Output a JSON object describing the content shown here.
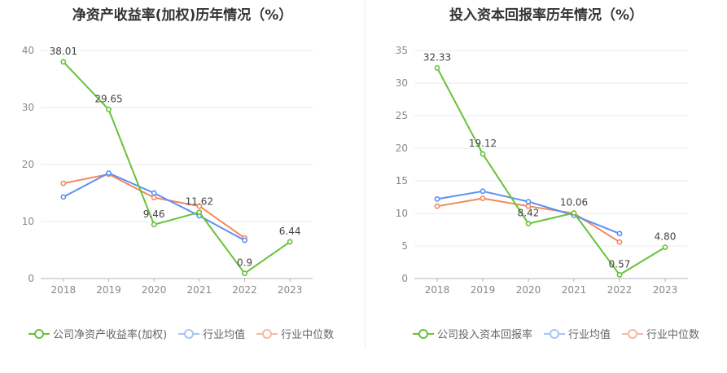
{
  "charts": [
    {
      "title": "净资产收益率(加权)历年情况（%）",
      "legend": [
        "公司净资产收益率(加权)",
        "行业均值",
        "行业中位数"
      ]
    },
    {
      "title": "投入资本回报率历年情况（%）",
      "legend": [
        "公司投入资本回报率",
        "行业均值",
        "行业中位数"
      ]
    }
  ],
  "colors": {
    "company": "#67c23a",
    "avg": "#5b8ff9",
    "median": "#f4885b",
    "avg_legend": "#a9c3f7",
    "median_legend": "#f5b8a3"
  },
  "chart_data": [
    {
      "type": "line",
      "title": "净资产收益率(加权)历年情况（%）",
      "categories": [
        "2018",
        "2019",
        "2020",
        "2021",
        "2022",
        "2023"
      ],
      "ylim": [
        0,
        40
      ],
      "yticks": [
        0,
        10,
        20,
        30,
        40
      ],
      "series": [
        {
          "name": "公司净资产收益率(加权)",
          "values": [
            38.01,
            29.65,
            9.46,
            11.62,
            0.9,
            6.44
          ],
          "labels": [
            "38.01",
            "29.65",
            "9.46",
            "11.62",
            "0.9",
            "6.44"
          ]
        },
        {
          "name": "行业均值",
          "values": [
            14.3,
            18.5,
            15.0,
            11.0,
            6.7,
            null
          ]
        },
        {
          "name": "行业中位数",
          "values": [
            16.7,
            18.3,
            14.2,
            12.7,
            7.1,
            null
          ]
        }
      ]
    },
    {
      "type": "line",
      "title": "投入资本回报率历年情况（%）",
      "categories": [
        "2018",
        "2019",
        "2020",
        "2021",
        "2022",
        "2023"
      ],
      "ylim": [
        0,
        35
      ],
      "yticks": [
        0,
        5,
        10,
        15,
        20,
        25,
        30,
        35
      ],
      "series": [
        {
          "name": "公司投入资本回报率",
          "values": [
            32.33,
            19.12,
            8.42,
            10.06,
            0.57,
            4.8
          ],
          "labels": [
            "32.33",
            "19.12",
            "8.42",
            "10.06",
            "0.57",
            "4.80"
          ]
        },
        {
          "name": "行业均值",
          "values": [
            12.2,
            13.4,
            11.8,
            9.7,
            6.9,
            null
          ]
        },
        {
          "name": "行业中位数",
          "values": [
            11.1,
            12.3,
            11.1,
            10.0,
            5.6,
            null
          ]
        }
      ]
    }
  ]
}
